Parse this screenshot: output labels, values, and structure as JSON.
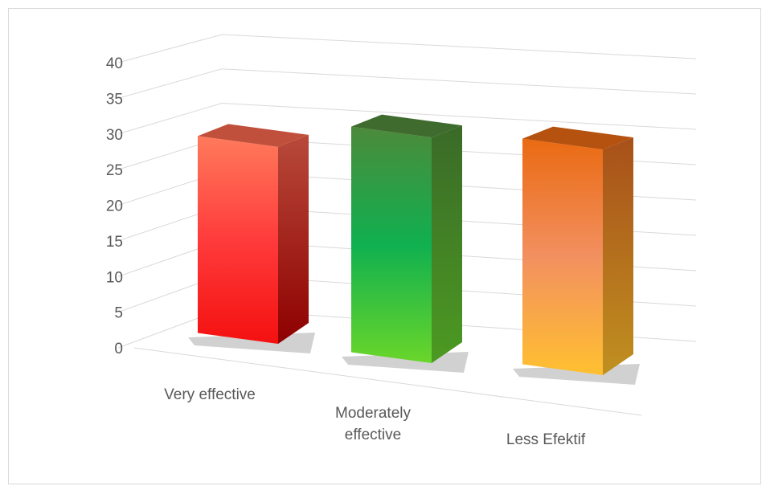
{
  "chart_data": {
    "type": "bar",
    "style": "3d-column",
    "categories": [
      "Very effective",
      "Moderately effective",
      "Less Efektif"
    ],
    "category_label_lines": [
      [
        "Very effective"
      ],
      [
        "Moderately",
        "effective"
      ],
      [
        "Less Efektif"
      ]
    ],
    "values": [
      29,
      33,
      33
    ],
    "ylim": [
      0,
      40
    ],
    "yticks": [
      0,
      5,
      10,
      15,
      20,
      25,
      30,
      35,
      40
    ],
    "grid": true,
    "legend": "none",
    "title": "",
    "xlabel": "",
    "ylabel": "",
    "bar_colors": [
      {
        "front_top": "#ff7a5c",
        "front_mid": "#ff3b3b",
        "front_bottom": "#f41010",
        "side_top": "#b84a3a",
        "side_bottom": "#8e0000",
        "top": "#c0503c"
      },
      {
        "front_top": "#4c8a3a",
        "front_mid": "#10b050",
        "front_bottom": "#6ad62a",
        "side_top": "#3a6a28",
        "side_bottom": "#4c9a22",
        "top": "#3f6b2e"
      },
      {
        "front_top": "#ea6a12",
        "front_mid": "#f29060",
        "front_bottom": "#ffc030",
        "side_top": "#a8501a",
        "side_bottom": "#c09020",
        "top": "#b5520f"
      }
    ]
  }
}
